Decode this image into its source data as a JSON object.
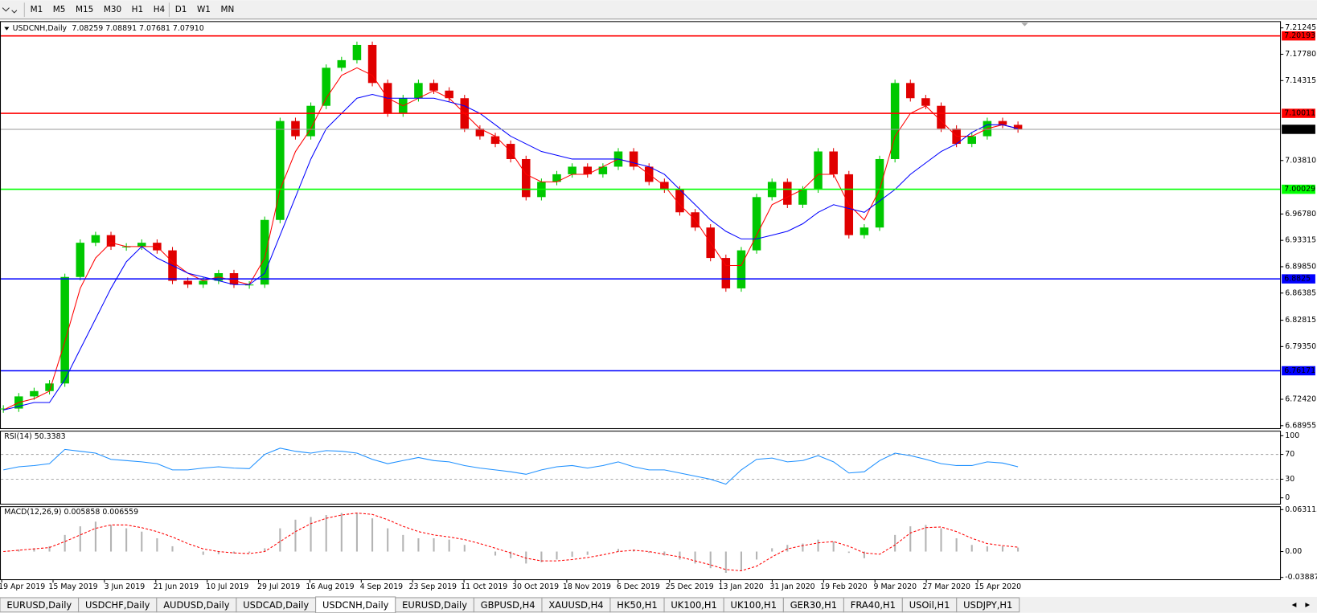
{
  "toolbar": {
    "timeframes": [
      "M1",
      "M5",
      "M15",
      "M30",
      "H1",
      "H4",
      "D1",
      "W1",
      "MN"
    ]
  },
  "chart_data": [
    {
      "type": "candlestick",
      "title": "USDCNH,Daily",
      "subtitle": "7.08259 7.08891 7.07681 7.07910",
      "closes": [
        6.712,
        6.728,
        6.735,
        6.745,
        6.885,
        6.93,
        6.94,
        6.925,
        6.925,
        6.93,
        6.92,
        6.88,
        6.875,
        6.88,
        6.89,
        6.875,
        6.875,
        6.96,
        7.09,
        7.07,
        7.11,
        7.16,
        7.17,
        7.19,
        7.14,
        7.1,
        7.12,
        7.14,
        7.13,
        7.12,
        7.08,
        7.07,
        7.06,
        7.04,
        6.99,
        7.01,
        7.02,
        7.03,
        7.02,
        7.03,
        7.05,
        7.03,
        7.01,
        7.0,
        6.97,
        6.95,
        6.91,
        6.87,
        6.92,
        6.99,
        7.01,
        6.98,
        7.0,
        7.05,
        7.02,
        6.94,
        6.95,
        7.04,
        7.14,
        7.12,
        7.11,
        7.08,
        7.06,
        7.07,
        7.09,
        7.085,
        7.0791
      ],
      "up_color": "#00c800",
      "down_color": "#e00000",
      "series": [
        {
          "color": "#ff0000",
          "values": [
            6.71,
            6.72,
            6.725,
            6.735,
            6.8,
            6.87,
            6.91,
            6.93,
            6.925,
            6.925,
            6.925,
            6.905,
            6.89,
            6.88,
            6.885,
            6.88,
            6.875,
            6.91,
            7.0,
            7.05,
            7.08,
            7.12,
            7.15,
            7.16,
            7.15,
            7.12,
            7.11,
            7.12,
            7.13,
            7.12,
            7.1,
            7.08,
            7.07,
            7.05,
            7.02,
            7.01,
            7.01,
            7.02,
            7.02,
            7.03,
            7.04,
            7.035,
            7.02,
            7.005,
            6.98,
            6.96,
            6.93,
            6.9,
            6.9,
            6.94,
            6.98,
            6.99,
            7.0,
            7.02,
            7.02,
            6.98,
            6.96,
            7.0,
            7.07,
            7.1,
            7.11,
            7.09,
            7.07,
            7.07,
            7.08,
            7.085,
            7.08
          ]
        },
        {
          "color": "#0000ff",
          "values": [
            6.71,
            6.715,
            6.72,
            6.72,
            6.75,
            6.79,
            6.83,
            6.87,
            6.905,
            6.925,
            6.91,
            6.9,
            6.89,
            6.885,
            6.88,
            6.875,
            6.875,
            6.89,
            6.94,
            6.99,
            7.04,
            7.08,
            7.1,
            7.12,
            7.125,
            7.12,
            7.12,
            7.12,
            7.12,
            7.115,
            7.11,
            7.1,
            7.085,
            7.07,
            7.06,
            7.05,
            7.045,
            7.04,
            7.04,
            7.04,
            7.04,
            7.035,
            7.03,
            7.02,
            7.0,
            6.98,
            6.96,
            6.945,
            6.935,
            6.935,
            6.94,
            6.945,
            6.955,
            6.97,
            6.98,
            6.975,
            6.97,
            6.985,
            7.0,
            7.02,
            7.035,
            7.05,
            7.06,
            7.075,
            7.085,
            7.085,
            7.08
          ]
        }
      ],
      "ylim": [
        6.6862,
        7.2213
      ],
      "yticks": [
        7.21245,
        {
          "value": 7.1778,
          "label": "7.17780"
        },
        7.14315,
        {
          "value": 7.0381,
          "label": "7.03810"
        },
        {
          "value": 6.9678,
          "label": "6.96780"
        },
        6.93315,
        {
          "value": 6.8985,
          "label": "6.89850"
        },
        6.86385,
        6.82815,
        {
          "value": 6.7935,
          "label": "6.79350"
        },
        {
          "value": 6.7242,
          "label": "6.72420"
        },
        6.68955
      ],
      "levels": [
        {
          "value": 7.20193,
          "color": "#ff0000"
        },
        {
          "value": 7.10011,
          "color": "#ff0000"
        },
        {
          "value": 7.00029,
          "color": "#00ff00"
        },
        {
          "value": 6.8825,
          "color": "#0000ff"
        },
        {
          "value": 6.76171,
          "color": "#0000ff"
        }
      ],
      "current": {
        "value": 7.0791,
        "label": "7.07910"
      },
      "x_labels": [
        "19 Apr 2019",
        "15 May 2019",
        "3 Jun 2019",
        "21 Jun 2019",
        "10 Jul 2019",
        "29 Jul 2019",
        "16 Aug 2019",
        "4 Sep 2019",
        "23 Sep 2019",
        "11 Oct 2019",
        "30 Oct 2019",
        "18 Nov 2019",
        "6 Dec 2019",
        "25 Dec 2019",
        "13 Jan 2020",
        "31 Jan 2020",
        "19 Feb 2020",
        "9 Mar 2020",
        "27 Mar 2020",
        "15 Apr 2020"
      ]
    },
    {
      "type": "line",
      "title": "RSI(14) 50.3383",
      "color": "#1e90ff",
      "values": [
        45,
        50,
        52,
        55,
        78,
        75,
        72,
        62,
        60,
        58,
        55,
        45,
        45,
        48,
        50,
        48,
        47,
        70,
        80,
        75,
        72,
        76,
        75,
        72,
        62,
        55,
        60,
        65,
        60,
        58,
        52,
        48,
        45,
        42,
        38,
        45,
        50,
        52,
        48,
        52,
        58,
        50,
        45,
        45,
        40,
        35,
        30,
        22,
        45,
        62,
        64,
        58,
        60,
        68,
        58,
        40,
        42,
        60,
        72,
        68,
        62,
        55,
        52,
        52,
        58,
        56,
        50
      ],
      "ylim": [
        -9.5,
        108.1
      ],
      "yticks": [
        100,
        70,
        30,
        0
      ],
      "levels": [
        70,
        30
      ]
    },
    {
      "type": "macd",
      "title": "MACD(12,26,9) 0.005858 0.006559",
      "hist_color": "#b4b4b4",
      "signal_color": "#ff0000",
      "histogram": [
        0,
        0.003,
        0.005,
        0.008,
        0.025,
        0.038,
        0.045,
        0.04,
        0.035,
        0.03,
        0.02,
        0.008,
        0,
        -0.005,
        -0.004,
        -0.003,
        -0.002,
        0.005,
        0.035,
        0.048,
        0.052,
        0.055,
        0.058,
        0.058,
        0.05,
        0.035,
        0.025,
        0.02,
        0.02,
        0.018,
        0.01,
        0,
        -0.006,
        -0.01,
        -0.018,
        -0.016,
        -0.012,
        -0.008,
        -0.005,
        0,
        0.004,
        0.003,
        -0.002,
        -0.006,
        -0.012,
        -0.018,
        -0.025,
        -0.032,
        -0.028,
        -0.012,
        0.005,
        0.01,
        0.012,
        0.018,
        0.015,
        -0.002,
        -0.01,
        0,
        0.025,
        0.038,
        0.04,
        0.035,
        0.02,
        0.01,
        0.008,
        0.008,
        0.006
      ],
      "signal": [
        0,
        0.002,
        0.004,
        0.006,
        0.015,
        0.025,
        0.035,
        0.04,
        0.04,
        0.036,
        0.03,
        0.022,
        0.012,
        0.004,
        0,
        -0.002,
        -0.003,
        0,
        0.015,
        0.03,
        0.042,
        0.05,
        0.055,
        0.058,
        0.056,
        0.048,
        0.038,
        0.03,
        0.025,
        0.022,
        0.018,
        0.012,
        0.005,
        -0.002,
        -0.01,
        -0.014,
        -0.014,
        -0.012,
        -0.009,
        -0.005,
        0,
        0.002,
        0,
        -0.004,
        -0.008,
        -0.014,
        -0.02,
        -0.027,
        -0.029,
        -0.022,
        -0.008,
        0.004,
        0.009,
        0.013,
        0.015,
        0.008,
        -0.002,
        -0.004,
        0.01,
        0.028,
        0.036,
        0.037,
        0.03,
        0.02,
        0.012,
        0.009,
        0.0066
      ],
      "ylim": [
        -0.0417,
        0.0682
      ],
      "yticks": [
        0.063113,
        {
          "value": 0,
          "label": "0.00"
        },
        -0.038872
      ]
    }
  ],
  "tabs": [
    "EURUSD,Daily",
    "USDCHF,Daily",
    "AUDUSD,Daily",
    "USDCAD,Daily",
    "USDCNH,Daily",
    "EURUSD,Daily",
    "GBPUSD,H4",
    "XAUUSD,H4",
    "HK50,H1",
    "UK100,H1",
    "UK100,H1",
    "GER30,H1",
    "FRA40,H1",
    "USOil,H1",
    "USDJPY,H1"
  ],
  "active_tab": 4
}
